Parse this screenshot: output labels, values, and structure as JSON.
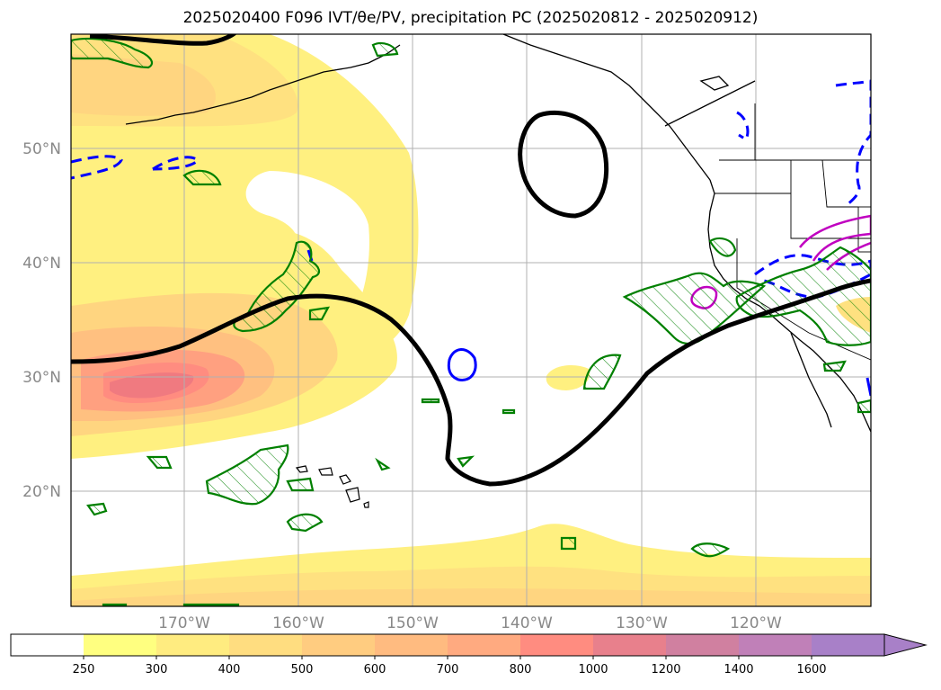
{
  "title": "2025020400 F096 IVT/θe/PV, precipitation PC (2025020812 - 2025020912)",
  "map": {
    "lat_labels": [
      "50°N",
      "40°N",
      "30°N",
      "20°N"
    ],
    "lon_labels": [
      "170°W",
      "160°W",
      "150°W",
      "140°W",
      "130°W",
      "120°W"
    ]
  },
  "colorbar": {
    "levels": [
      "250",
      "300",
      "400",
      "500",
      "600",
      "700",
      "800",
      "1000",
      "1200",
      "1400",
      "1600"
    ],
    "colors": [
      "#ffffff",
      "#ffff80",
      "#ffec80",
      "#ffdd80",
      "#ffcc80",
      "#ffbb80",
      "#ffaa80",
      "#ff8c80",
      "#e8808c",
      "#d080a0",
      "#c080b8",
      "#a880c8"
    ]
  },
  "legend_colors": {
    "theta_e_contour": "#000000",
    "precip_contour": "#008000",
    "pv_negative": "#0000ff",
    "pv_positive": "#c000c0"
  }
}
